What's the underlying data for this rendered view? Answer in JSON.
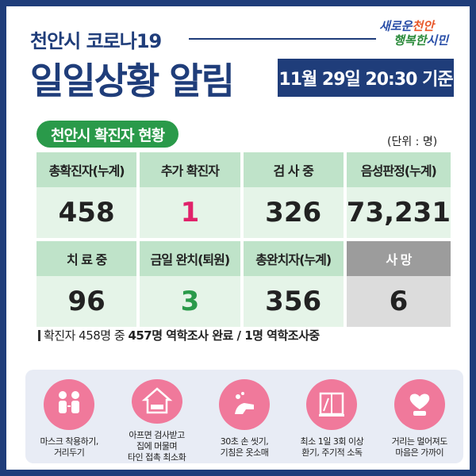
{
  "header": {
    "subtitle": "천안시 코로나19",
    "title": "일일상황 알림",
    "date": "11월 29일 20:30 기준",
    "logo_line1_a": "새로운",
    "logo_line1_b": "천안",
    "logo_line2_a": "행복한",
    "logo_line2_b": "시민"
  },
  "section": {
    "pill": "천안시 확진자 현황",
    "unit": "(단위 : 명)"
  },
  "stats": {
    "row1_headers": [
      "총확진자(누계)",
      "추가 확진자",
      "검 사 중",
      "음성판정(누계)"
    ],
    "row1_values": [
      "458",
      "1",
      "326",
      "73,231"
    ],
    "row2_headers": [
      "치 료 중",
      "금일 완치(퇴원)",
      "총완치자(누계)",
      "사   망"
    ],
    "row2_values": [
      "96",
      "3",
      "356",
      "6"
    ]
  },
  "note": {
    "prefix": "확진자 458명 중 ",
    "bold": "457명 역학조사 완료 / 1명 역학조사중"
  },
  "tips": [
    {
      "icon": "people-icon",
      "text": "마스크 착용하기,\n거리두기"
    },
    {
      "icon": "house-icon",
      "text": "아프면 검사받고\n집에 머물며\n타인 접촉 최소화"
    },
    {
      "icon": "handwash-icon",
      "text": "30초 손 씻기,\n기침은 옷소매"
    },
    {
      "icon": "window-icon",
      "text": "최소 1일 3회 이상\n환기, 주기적 소독"
    },
    {
      "icon": "distance-icon",
      "text": "거리는 멀어져도\n마음은 가까이"
    }
  ],
  "colors": {
    "navy": "#1f3d7a",
    "green": "#2a9a4a",
    "pink": "#f0799b",
    "red": "#e0226a"
  }
}
